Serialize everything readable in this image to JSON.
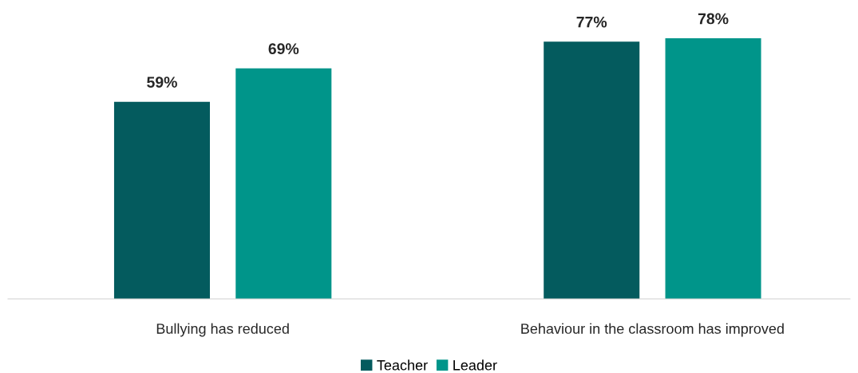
{
  "chart_data": {
    "type": "bar",
    "categories": [
      "Bullying has reduced",
      "Behaviour in the classroom has improved"
    ],
    "series": [
      {
        "name": "Teacher",
        "color": "#045b5e",
        "values": [
          59,
          77
        ],
        "value_labels": [
          "59%",
          "77%"
        ]
      },
      {
        "name": "Leader",
        "color": "#00958a",
        "values": [
          69,
          78
        ],
        "value_labels": [
          "69%",
          "78%"
        ]
      }
    ],
    "legend": "bottom"
  }
}
